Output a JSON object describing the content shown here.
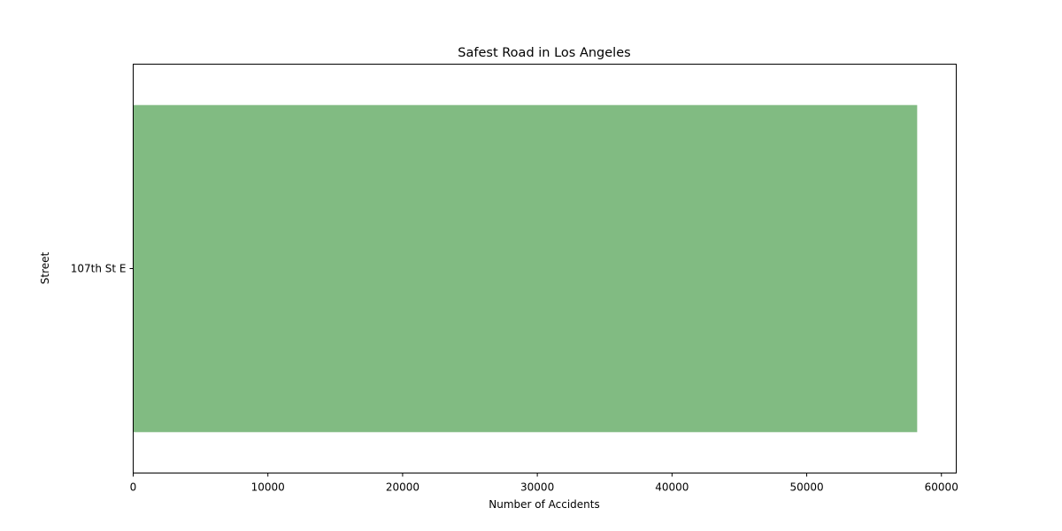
{
  "chart_data": {
    "type": "bar",
    "orientation": "horizontal",
    "title": "Safest Road in Los Angeles",
    "xlabel": "Number of Accidents",
    "ylabel": "Street",
    "categories": [
      "107th St E"
    ],
    "values": [
      58200
    ],
    "xlim": [
      0,
      61100
    ],
    "xticks": [
      0,
      10000,
      20000,
      30000,
      40000,
      50000,
      60000
    ],
    "xtick_labels": [
      "0",
      "10000",
      "20000",
      "30000",
      "40000",
      "50000",
      "60000"
    ],
    "bar_color": "#81bb82",
    "grid": false,
    "legend": "none"
  }
}
